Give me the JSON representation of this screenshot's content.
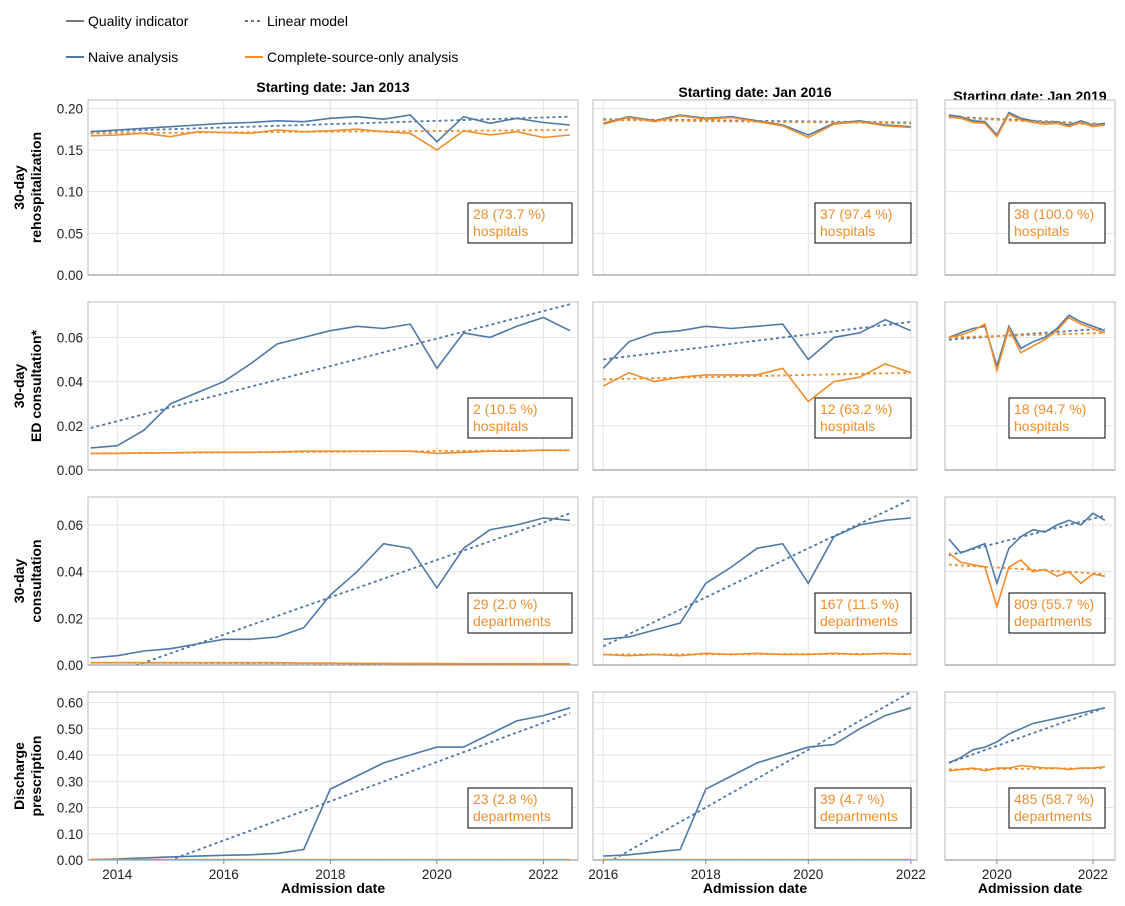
{
  "legend": {
    "styles": [
      "Quality indicator",
      "Linear model"
    ],
    "series": [
      {
        "name": "Naive analysis",
        "color": "#4e79a7"
      },
      {
        "name": "Complete-source-only analysis",
        "color": "#f28e2b"
      }
    ]
  },
  "x_label": "Admission date",
  "columns": [
    {
      "title": "Starting date: Jan 2013",
      "xlim": [
        2013.45,
        2022.65
      ],
      "xticks": [
        2014,
        2016,
        2018,
        2020,
        2022
      ]
    },
    {
      "title": "Starting date: Jan 2016",
      "xlim": [
        2015.8,
        2022.12
      ],
      "xticks": [
        2016,
        2018,
        2020,
        2022
      ]
    },
    {
      "title": "Starting date: Jan 2019",
      "xlim": [
        2018.92,
        2022.46
      ],
      "xticks": [
        2020,
        2022
      ]
    }
  ],
  "rows": [
    {
      "ylabel": [
        "30-day",
        "rehospitalization"
      ],
      "ylim": [
        0,
        0.21
      ],
      "yticks": [
        {
          "value": 0,
          "label": "0.00"
        },
        {
          "value": 0.05,
          "label": "0.05"
        },
        {
          "value": 0.1,
          "label": "0.10"
        },
        {
          "value": 0.15,
          "label": "0.15"
        },
        {
          "value": 0.2,
          "label": "0.20"
        }
      ]
    },
    {
      "ylabel": [
        "30-day",
        "ED consultation*"
      ],
      "ylim": [
        0,
        0.076
      ],
      "yticks": [
        {
          "value": 0,
          "label": "0.00"
        },
        {
          "value": 0.02,
          "label": "0.02"
        },
        {
          "value": 0.04,
          "label": "0.04"
        },
        {
          "value": 0.06,
          "label": "0.06"
        }
      ]
    },
    {
      "ylabel": [
        "30-day",
        "consultation"
      ],
      "ylim": [
        0,
        0.072
      ],
      "yticks": [
        {
          "value": 0,
          "label": "0.00"
        },
        {
          "value": 0.02,
          "label": "0.02"
        },
        {
          "value": 0.04,
          "label": "0.04"
        },
        {
          "value": 0.06,
          "label": "0.06"
        }
      ]
    },
    {
      "ylabel": [
        "Discharge",
        "prescription"
      ],
      "ylim": [
        0,
        0.64
      ],
      "yticks": [
        {
          "value": 0,
          "label": "0.00"
        },
        {
          "value": 0.1,
          "label": "0.10"
        },
        {
          "value": 0.2,
          "label": "0.20"
        },
        {
          "value": 0.3,
          "label": "0.30"
        },
        {
          "value": 0.4,
          "label": "0.40"
        },
        {
          "value": 0.5,
          "label": "0.50"
        },
        {
          "value": 0.6,
          "label": "0.60"
        }
      ]
    }
  ],
  "chart_data": [
    {
      "type": "line",
      "x": [
        2013.5,
        2014,
        2014.5,
        2015,
        2015.5,
        2016,
        2016.5,
        2017,
        2017.5,
        2018,
        2018.5,
        2019,
        2019.5,
        2020,
        2020.5,
        2021,
        2021.5,
        2022,
        2022.5
      ],
      "fit_x": [
        2013.5,
        2022.5
      ],
      "series": [
        {
          "values": [
            0.172,
            0.174,
            0.176,
            0.178,
            0.18,
            0.182,
            0.183,
            0.185,
            0.184,
            0.188,
            0.19,
            0.187,
            0.192,
            0.16,
            0.19,
            0.182,
            0.188,
            0.183,
            0.18
          ],
          "fit": [
            0.172,
            0.19
          ]
        },
        {
          "values": [
            0.167,
            0.168,
            0.17,
            0.166,
            0.172,
            0.171,
            0.17,
            0.174,
            0.172,
            0.173,
            0.175,
            0.172,
            0.17,
            0.15,
            0.173,
            0.168,
            0.172,
            0.165,
            0.168
          ],
          "fit": [
            0.17,
            0.174
          ]
        }
      ],
      "annotation": [
        "28 (73.7 %)",
        "hospitals"
      ]
    },
    {
      "type": "line",
      "x": [
        2016,
        2016.5,
        2017,
        2017.5,
        2018,
        2018.5,
        2019,
        2019.5,
        2020,
        2020.5,
        2021,
        2021.5,
        2022
      ],
      "fit_x": [
        2016,
        2022
      ],
      "series": [
        {
          "values": [
            0.182,
            0.19,
            0.185,
            0.192,
            0.188,
            0.19,
            0.185,
            0.18,
            0.168,
            0.182,
            0.185,
            0.18,
            0.178
          ],
          "fit": [
            0.187,
            0.183
          ]
        },
        {
          "values": [
            0.181,
            0.189,
            0.184,
            0.191,
            0.187,
            0.189,
            0.184,
            0.179,
            0.165,
            0.181,
            0.184,
            0.179,
            0.177
          ],
          "fit": [
            0.186,
            0.182
          ]
        }
      ],
      "annotation": [
        "37 (97.4 %)",
        "hospitals"
      ]
    },
    {
      "type": "line",
      "x": [
        2019,
        2019.25,
        2019.5,
        2019.75,
        2020,
        2020.25,
        2020.5,
        2020.75,
        2021,
        2021.25,
        2021.5,
        2021.75,
        2022,
        2022.25
      ],
      "fit_x": [
        2019,
        2022.25
      ],
      "series": [
        {
          "values": [
            0.192,
            0.19,
            0.185,
            0.184,
            0.168,
            0.195,
            0.188,
            0.185,
            0.183,
            0.184,
            0.18,
            0.185,
            0.18,
            0.182
          ],
          "fit": [
            0.19,
            0.181
          ]
        },
        {
          "values": [
            0.19,
            0.188,
            0.183,
            0.182,
            0.166,
            0.193,
            0.186,
            0.183,
            0.181,
            0.182,
            0.178,
            0.183,
            0.178,
            0.18
          ],
          "fit": [
            0.189,
            0.18
          ]
        }
      ],
      "annotation": [
        "38 (100.0 %)",
        "hospitals"
      ]
    },
    {
      "type": "line",
      "x": [
        2013.5,
        2014,
        2014.5,
        2015,
        2015.5,
        2016,
        2016.5,
        2017,
        2017.5,
        2018,
        2018.5,
        2019,
        2019.5,
        2020,
        2020.5,
        2021,
        2021.5,
        2022,
        2022.5
      ],
      "fit_x": [
        2013.5,
        2022.5
      ],
      "series": [
        {
          "values": [
            0.01,
            0.011,
            0.018,
            0.03,
            0.035,
            0.04,
            0.048,
            0.057,
            0.06,
            0.063,
            0.065,
            0.064,
            0.066,
            0.046,
            0.062,
            0.06,
            0.065,
            0.069,
            0.063
          ],
          "fit": [
            0.019,
            0.075
          ]
        },
        {
          "values": [
            0.0075,
            0.0075,
            0.0078,
            0.0078,
            0.008,
            0.008,
            0.008,
            0.0082,
            0.0085,
            0.0085,
            0.0085,
            0.0085,
            0.0085,
            0.0075,
            0.008,
            0.0085,
            0.0085,
            0.009,
            0.0088
          ],
          "fit": [
            0.0075,
            0.009
          ]
        }
      ],
      "annotation": [
        "2 (10.5 %)",
        "hospitals"
      ]
    },
    {
      "type": "line",
      "x": [
        2016,
        2016.5,
        2017,
        2017.5,
        2018,
        2018.5,
        2019,
        2019.5,
        2020,
        2020.5,
        2021,
        2021.5,
        2022
      ],
      "fit_x": [
        2016,
        2022
      ],
      "series": [
        {
          "values": [
            0.046,
            0.058,
            0.062,
            0.063,
            0.065,
            0.064,
            0.065,
            0.066,
            0.05,
            0.06,
            0.062,
            0.068,
            0.063
          ],
          "fit": [
            0.05,
            0.067
          ]
        },
        {
          "values": [
            0.038,
            0.044,
            0.04,
            0.042,
            0.043,
            0.043,
            0.043,
            0.046,
            0.031,
            0.04,
            0.042,
            0.048,
            0.044
          ],
          "fit": [
            0.041,
            0.044
          ]
        }
      ],
      "annotation": [
        "12 (63.2 %)",
        "hospitals"
      ]
    },
    {
      "type": "line",
      "x": [
        2019,
        2019.25,
        2019.5,
        2019.75,
        2020,
        2020.25,
        2020.5,
        2020.75,
        2021,
        2021.25,
        2021.5,
        2021.75,
        2022,
        2022.25
      ],
      "fit_x": [
        2019,
        2022.25
      ],
      "series": [
        {
          "values": [
            0.06,
            0.062,
            0.064,
            0.065,
            0.047,
            0.065,
            0.055,
            0.058,
            0.06,
            0.064,
            0.07,
            0.067,
            0.065,
            0.063
          ],
          "fit": [
            0.059,
            0.064
          ]
        },
        {
          "values": [
            0.06,
            0.061,
            0.063,
            0.066,
            0.045,
            0.064,
            0.053,
            0.056,
            0.059,
            0.063,
            0.069,
            0.066,
            0.064,
            0.062
          ],
          "fit": [
            0.06,
            0.062
          ]
        }
      ],
      "annotation": [
        "18 (94.7 %)",
        "hospitals"
      ]
    },
    {
      "type": "line",
      "x": [
        2013.5,
        2014,
        2014.5,
        2015,
        2015.5,
        2016,
        2016.5,
        2017,
        2017.5,
        2018,
        2018.5,
        2019,
        2019.5,
        2020,
        2020.5,
        2021,
        2021.5,
        2022,
        2022.5
      ],
      "fit_x": [
        2013.5,
        2022.5
      ],
      "series": [
        {
          "values": [
            0.003,
            0.004,
            0.006,
            0.007,
            0.009,
            0.011,
            0.011,
            0.012,
            0.016,
            0.03,
            0.04,
            0.052,
            0.05,
            0.033,
            0.05,
            0.058,
            0.06,
            0.063,
            0.062
          ],
          "fit": [
            -0.007,
            0.065
          ]
        },
        {
          "values": [
            0.001,
            0.001,
            0.001,
            0.001,
            0.001,
            0.001,
            0.001,
            0.001,
            0.0008,
            0.0008,
            0.0007,
            0.0007,
            0.0006,
            0.0006,
            0.0005,
            0.0005,
            0.0005,
            0.0005,
            0.0005
          ],
          "fit": [
            0.001,
            0.0003
          ]
        }
      ],
      "annotation": [
        "29 (2.0 %)",
        "departments"
      ]
    },
    {
      "type": "line",
      "x": [
        2016,
        2016.5,
        2017,
        2017.5,
        2018,
        2018.5,
        2019,
        2019.5,
        2020,
        2020.5,
        2021,
        2021.5,
        2022
      ],
      "fit_x": [
        2016,
        2022
      ],
      "series": [
        {
          "values": [
            0.011,
            0.012,
            0.015,
            0.018,
            0.035,
            0.042,
            0.05,
            0.052,
            0.035,
            0.055,
            0.06,
            0.062,
            0.063
          ],
          "fit": [
            0.008,
            0.071
          ]
        },
        {
          "values": [
            0.0045,
            0.004,
            0.0045,
            0.004,
            0.005,
            0.0045,
            0.005,
            0.0045,
            0.0045,
            0.005,
            0.0045,
            0.005,
            0.0045
          ],
          "fit": [
            0.0045,
            0.0048
          ]
        }
      ],
      "annotation": [
        "167 (11.5 %)",
        "departments"
      ]
    },
    {
      "type": "line",
      "x": [
        2019,
        2019.25,
        2019.5,
        2019.75,
        2020,
        2020.25,
        2020.5,
        2020.75,
        2021,
        2021.25,
        2021.5,
        2021.75,
        2022,
        2022.25
      ],
      "fit_x": [
        2019,
        2022.25
      ],
      "series": [
        {
          "values": [
            0.054,
            0.048,
            0.05,
            0.052,
            0.035,
            0.05,
            0.055,
            0.058,
            0.057,
            0.06,
            0.062,
            0.06,
            0.065,
            0.062
          ],
          "fit": [
            0.047,
            0.064
          ]
        },
        {
          "values": [
            0.048,
            0.044,
            0.043,
            0.042,
            0.025,
            0.042,
            0.045,
            0.04,
            0.041,
            0.038,
            0.04,
            0.035,
            0.039,
            0.038
          ],
          "fit": [
            0.043,
            0.039
          ]
        }
      ],
      "annotation": [
        "809 (55.7 %)",
        "departments"
      ]
    },
    {
      "type": "line",
      "x": [
        2013.5,
        2014,
        2014.5,
        2015,
        2015.5,
        2016,
        2016.5,
        2017,
        2017.5,
        2018,
        2018.5,
        2019,
        2019.5,
        2020,
        2020.5,
        2021,
        2021.5,
        2022,
        2022.5
      ],
      "fit_x": [
        2013.5,
        2022.5
      ],
      "series": [
        {
          "values": [
            0.002,
            0.004,
            0.008,
            0.012,
            0.015,
            0.018,
            0.02,
            0.025,
            0.04,
            0.27,
            0.32,
            0.37,
            0.4,
            0.43,
            0.43,
            0.48,
            0.53,
            0.55,
            0.58
          ],
          "fit": [
            -0.112,
            0.56
          ]
        },
        {
          "values": [
            0.001,
            0.001,
            0.001,
            0.001,
            0.001,
            0.001,
            0.001,
            0.001,
            0.001,
            0.001,
            0.001,
            0.001,
            0.001,
            0.001,
            0.001,
            0.001,
            0.001,
            0.001,
            0.001
          ],
          "fit": [
            0.001,
            0.001
          ]
        }
      ],
      "annotation": [
        "23 (2.8 %)",
        "departments"
      ]
    },
    {
      "type": "line",
      "x": [
        2016,
        2016.5,
        2017,
        2017.5,
        2018,
        2018.5,
        2019,
        2019.5,
        2020,
        2020.5,
        2021,
        2021.5,
        2022
      ],
      "fit_x": [
        2016,
        2022
      ],
      "series": [
        {
          "values": [
            0.015,
            0.02,
            0.03,
            0.04,
            0.27,
            0.32,
            0.37,
            0.4,
            0.43,
            0.44,
            0.5,
            0.55,
            0.58
          ],
          "fit": [
            -0.02,
            0.64
          ]
        },
        {
          "values": [
            0.001,
            0.001,
            0.001,
            0.001,
            0.001,
            0.001,
            0.001,
            0.001,
            0.001,
            0.001,
            0.001,
            0.001,
            0.001
          ],
          "fit": [
            0.001,
            0.001
          ]
        }
      ],
      "annotation": [
        "39 (4.7 %)",
        "departments"
      ]
    },
    {
      "type": "line",
      "x": [
        2019,
        2019.25,
        2019.5,
        2019.75,
        2020,
        2020.25,
        2020.5,
        2020.75,
        2021,
        2021.25,
        2021.5,
        2021.75,
        2022,
        2022.25
      ],
      "fit_x": [
        2019,
        2022.25
      ],
      "series": [
        {
          "values": [
            0.37,
            0.39,
            0.42,
            0.43,
            0.45,
            0.48,
            0.5,
            0.52,
            0.53,
            0.54,
            0.55,
            0.56,
            0.57,
            0.58
          ],
          "fit": [
            0.37,
            0.58
          ]
        },
        {
          "values": [
            0.34,
            0.345,
            0.35,
            0.34,
            0.35,
            0.35,
            0.36,
            0.355,
            0.35,
            0.35,
            0.345,
            0.35,
            0.35,
            0.355
          ],
          "fit": [
            0.345,
            0.35
          ]
        }
      ],
      "annotation": [
        "485 (58.7 %)",
        "departments"
      ]
    }
  ]
}
